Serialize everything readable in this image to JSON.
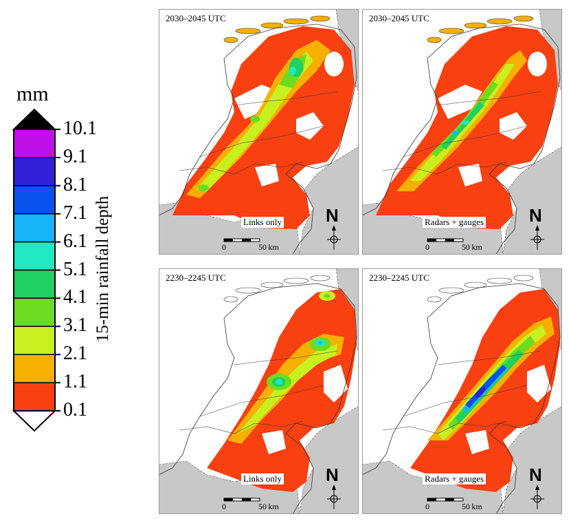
{
  "legend": {
    "unit": "mm",
    "title": "15-min rainfall depth",
    "ticks": [
      "10.1",
      "9.1",
      "8.1",
      "7.1",
      "6.1",
      "5.1",
      "4.1",
      "3.1",
      "2.1",
      "1.1",
      "0.1"
    ],
    "colors": [
      "#c010e8",
      "#3020d8",
      "#0a52f0",
      "#18b4f8",
      "#20e8c0",
      "#20d060",
      "#6cdc20",
      "#c8f020",
      "#f8b000",
      "#f84010"
    ]
  },
  "panels": [
    {
      "time": "2030–2045 UTC",
      "method": "Links only"
    },
    {
      "time": "2030–2045 UTC",
      "method": "Radars + gauges"
    },
    {
      "time": "2230–2245 UTC",
      "method": "Links only"
    },
    {
      "time": "2230–2245 UTC",
      "method": "Radars + gauges"
    }
  ],
  "scale_bar": {
    "zero": "0",
    "end": "50 km"
  },
  "north_label": "N"
}
